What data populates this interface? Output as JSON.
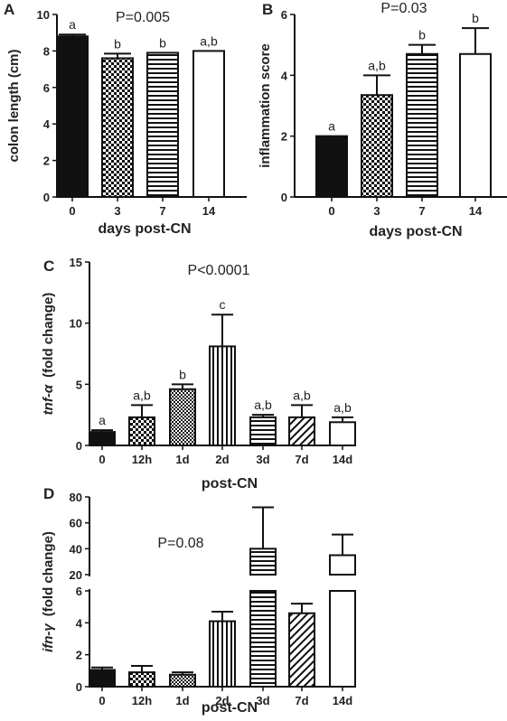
{
  "chart_data": [
    {
      "panel": "A",
      "type": "bar",
      "ylabel": "colon length (cm)",
      "xlabel": "days post-CN",
      "ylim": [
        0,
        10
      ],
      "yticks": [
        0,
        2,
        4,
        6,
        8,
        10
      ],
      "categories": [
        "0",
        "3",
        "7",
        "14"
      ],
      "values": [
        8.8,
        7.6,
        7.9,
        8.0
      ],
      "errors": [
        0.1,
        0.25,
        0.0,
        0.0
      ],
      "patterns": [
        "solid",
        "checker",
        "hstripe",
        "empty"
      ],
      "significance": [
        "a",
        "b",
        "b",
        "a,b"
      ],
      "pvalue": "P=0.005"
    },
    {
      "panel": "B",
      "type": "bar",
      "ylabel": "inflammation score",
      "xlabel": "days post-CN",
      "ylim": [
        0,
        6
      ],
      "yticks": [
        0,
        2,
        4,
        6
      ],
      "categories": [
        "0",
        "3",
        "7",
        "14"
      ],
      "values": [
        2.0,
        3.35,
        4.7,
        4.7
      ],
      "errors": [
        0.0,
        0.65,
        0.3,
        0.85
      ],
      "patterns": [
        "solid",
        "checker",
        "hstripe",
        "empty"
      ],
      "significance": [
        "a",
        "a,b",
        "b",
        "b"
      ],
      "pvalue": "P=0.03"
    },
    {
      "panel": "C",
      "type": "bar",
      "ylabel_italic": "tnf-α",
      "ylabel": "(fold change)",
      "xlabel": "post-CN",
      "ylim": [
        0,
        15
      ],
      "yticks": [
        0,
        5,
        10,
        15
      ],
      "categories": [
        "0",
        "12h",
        "1d",
        "2d",
        "3d",
        "7d",
        "14d"
      ],
      "values": [
        1.1,
        2.3,
        4.6,
        8.1,
        2.3,
        2.3,
        1.9
      ],
      "errors": [
        0.15,
        1.0,
        0.4,
        2.6,
        0.2,
        1.0,
        0.4
      ],
      "patterns": [
        "solid",
        "checker",
        "dense",
        "vstripe",
        "hstripe",
        "diagonal",
        "empty"
      ],
      "significance": [
        "a",
        "a,b",
        "b",
        "c",
        "a,b",
        "a,b",
        "a,b"
      ],
      "pvalue": "P<0.0001"
    },
    {
      "panel": "D",
      "type": "bar",
      "ylabel_italic": "ifn-γ",
      "ylabel": "(fold change)",
      "xlabel": "post-CN",
      "ylim_lower": [
        0,
        6
      ],
      "yticks_lower": [
        0,
        2,
        4,
        6
      ],
      "ylim_upper": [
        20,
        80
      ],
      "yticks_upper": [
        20,
        40,
        60,
        80
      ],
      "categories": [
        "0",
        "12h",
        "1d",
        "2d",
        "3d",
        "7d",
        "14d"
      ],
      "values": [
        1.05,
        0.9,
        0.75,
        4.1,
        40,
        4.6,
        35
      ],
      "errors": [
        0.15,
        0.4,
        0.15,
        0.6,
        32,
        0.6,
        16
      ],
      "patterns": [
        "solid",
        "checker",
        "dense",
        "vstripe",
        "hstripe",
        "diagonal",
        "empty"
      ],
      "pvalue": "P=0.08"
    }
  ]
}
